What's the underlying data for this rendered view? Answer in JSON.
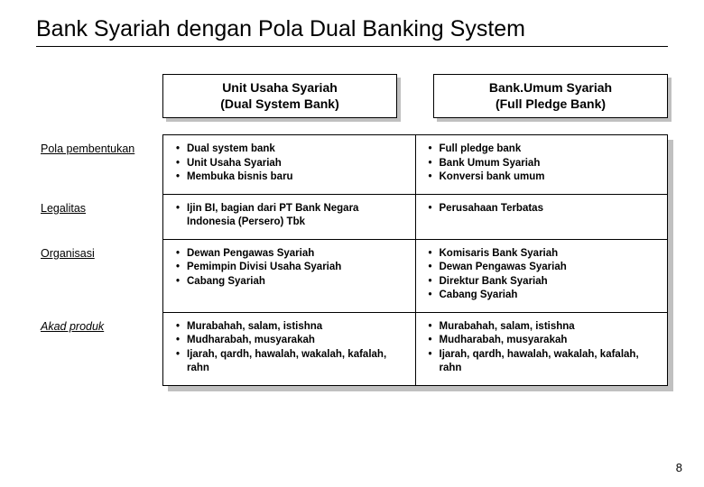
{
  "title": "Bank Syariah dengan Pola Dual Banking System",
  "columns": {
    "left": {
      "line1": "Unit Usaha Syariah",
      "line2": "(Dual System Bank)"
    },
    "right": {
      "line1": "Bank.Umum Syariah",
      "line2": "(Full Pledge Bank)"
    }
  },
  "rows": [
    {
      "label": "Pola pembentukan",
      "italic": false,
      "left": [
        "Dual system bank",
        "Unit Usaha Syariah",
        "Membuka bisnis baru"
      ],
      "right": [
        "Full pledge bank",
        "Bank Umum Syariah",
        "Konversi bank umum"
      ]
    },
    {
      "label": "Legalitas",
      "italic": false,
      "left": [
        "Ijin BI, bagian dari PT Bank Negara Indonesia (Persero) Tbk"
      ],
      "right": [
        "Perusahaan Terbatas"
      ]
    },
    {
      "label": "Organisasi",
      "italic": false,
      "left": [
        "Dewan Pengawas Syariah",
        "Pemimpin Divisi Usaha Syariah",
        "Cabang Syariah"
      ],
      "right": [
        "Komisaris Bank Syariah",
        "Dewan Pengawas Syariah",
        "Direktur Bank Syariah",
        "Cabang Syariah"
      ]
    },
    {
      "label": "Akad produk",
      "italic": true,
      "left": [
        "Murabahah, salam, istishna",
        "Mudharabah, musyarakah",
        "Ijarah, qardh, hawalah, wakalah, kafalah, rahn"
      ],
      "right": [
        "Murabahah, salam, istishna",
        "Mudharabah, musyarakah",
        "Ijarah, qardh, hawalah, wakalah, kafalah, rahn"
      ]
    }
  ],
  "pageNumber": "8"
}
